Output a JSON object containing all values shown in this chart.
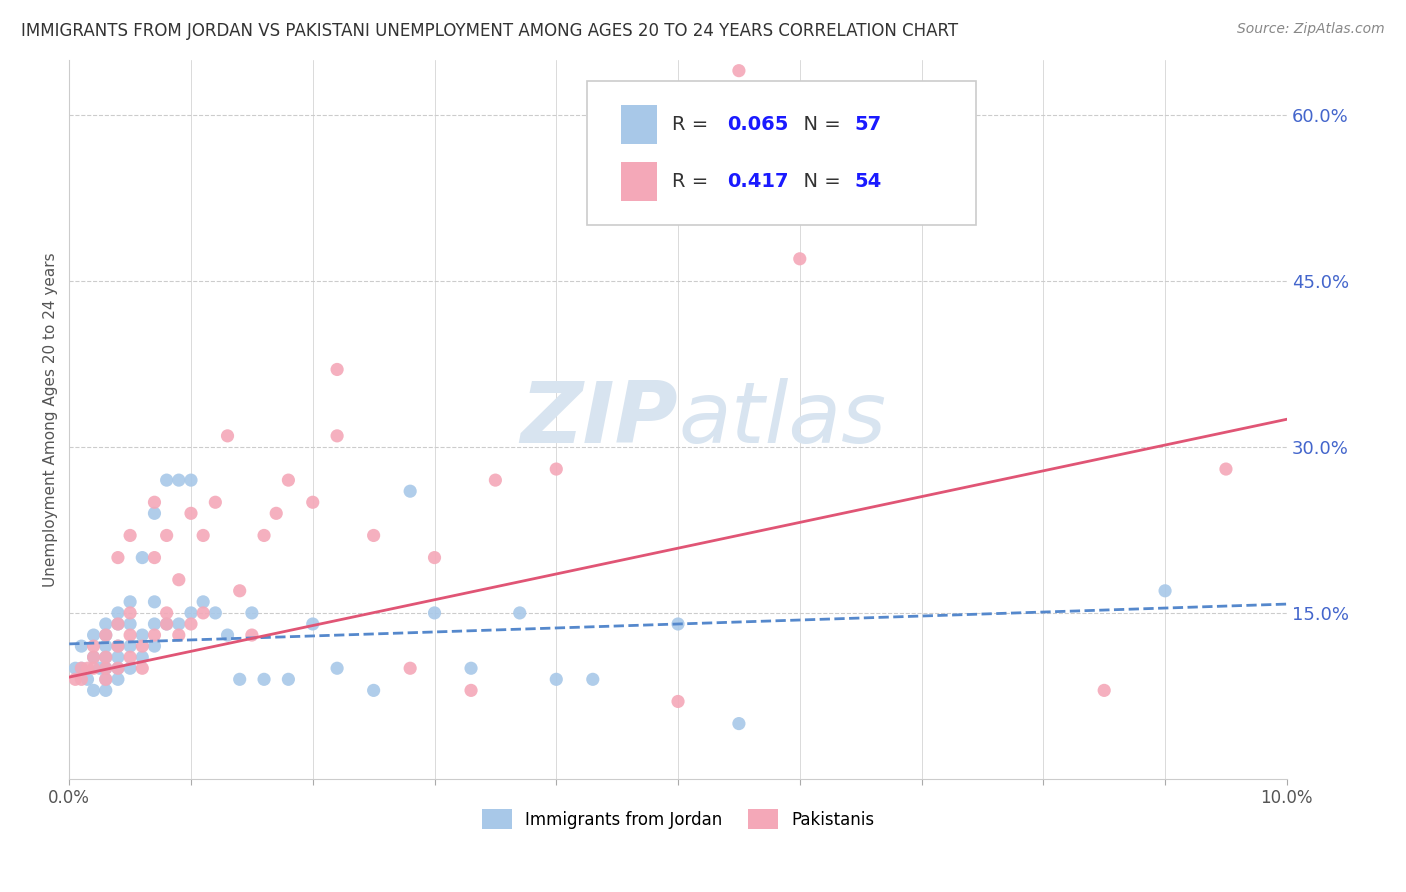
{
  "title": "IMMIGRANTS FROM JORDAN VS PAKISTANI UNEMPLOYMENT AMONG AGES 20 TO 24 YEARS CORRELATION CHART",
  "source": "Source: ZipAtlas.com",
  "ylabel": "Unemployment Among Ages 20 to 24 years",
  "xlim": [
    0.0,
    0.1
  ],
  "ylim": [
    0.0,
    0.65
  ],
  "xticks": [
    0.0,
    0.01,
    0.02,
    0.03,
    0.04,
    0.05,
    0.06,
    0.07,
    0.08,
    0.09,
    0.1
  ],
  "xticklabels": [
    "0.0%",
    "",
    "",
    "",
    "",
    "",
    "",
    "",
    "",
    "",
    "10.0%"
  ],
  "yticks_right": [
    0.15,
    0.3,
    0.45,
    0.6
  ],
  "ytick_right_labels": [
    "15.0%",
    "30.0%",
    "45.0%",
    "60.0%"
  ],
  "background_color": "#ffffff",
  "grid_color": "#cccccc",
  "jordan_color": "#a8c8e8",
  "pakistan_color": "#f4a8b8",
  "jordan_R": 0.065,
  "jordan_N": 57,
  "pakistan_R": 0.417,
  "pakistan_N": 54,
  "jordan_line_color": "#5588cc",
  "pakistan_line_color": "#e05575",
  "legend_text_color": "#1a1aff",
  "right_tick_color": "#4466cc",
  "watermark_color": "#d8e4f0",
  "jordan_scatter_x": [
    0.0005,
    0.001,
    0.001,
    0.0015,
    0.002,
    0.002,
    0.002,
    0.0025,
    0.003,
    0.003,
    0.003,
    0.003,
    0.003,
    0.003,
    0.003,
    0.004,
    0.004,
    0.004,
    0.004,
    0.004,
    0.004,
    0.005,
    0.005,
    0.005,
    0.005,
    0.006,
    0.006,
    0.006,
    0.007,
    0.007,
    0.007,
    0.007,
    0.008,
    0.008,
    0.009,
    0.009,
    0.01,
    0.01,
    0.011,
    0.012,
    0.013,
    0.014,
    0.015,
    0.016,
    0.018,
    0.02,
    0.022,
    0.025,
    0.028,
    0.03,
    0.033,
    0.037,
    0.04,
    0.043,
    0.05,
    0.055,
    0.09
  ],
  "jordan_scatter_y": [
    0.1,
    0.1,
    0.12,
    0.09,
    0.08,
    0.11,
    0.13,
    0.1,
    0.08,
    0.09,
    0.1,
    0.11,
    0.12,
    0.13,
    0.14,
    0.09,
    0.1,
    0.11,
    0.12,
    0.14,
    0.15,
    0.1,
    0.12,
    0.14,
    0.16,
    0.11,
    0.13,
    0.2,
    0.12,
    0.14,
    0.16,
    0.24,
    0.14,
    0.27,
    0.14,
    0.27,
    0.15,
    0.27,
    0.16,
    0.15,
    0.13,
    0.09,
    0.15,
    0.09,
    0.09,
    0.14,
    0.1,
    0.08,
    0.26,
    0.15,
    0.1,
    0.15,
    0.09,
    0.09,
    0.14,
    0.05,
    0.17
  ],
  "pakistan_scatter_x": [
    0.0005,
    0.001,
    0.001,
    0.0015,
    0.002,
    0.002,
    0.002,
    0.003,
    0.003,
    0.003,
    0.003,
    0.004,
    0.004,
    0.004,
    0.004,
    0.005,
    0.005,
    0.005,
    0.005,
    0.006,
    0.006,
    0.007,
    0.007,
    0.007,
    0.008,
    0.008,
    0.008,
    0.009,
    0.009,
    0.01,
    0.01,
    0.011,
    0.011,
    0.012,
    0.013,
    0.014,
    0.015,
    0.016,
    0.017,
    0.018,
    0.02,
    0.022,
    0.022,
    0.025,
    0.028,
    0.03,
    0.033,
    0.035,
    0.04,
    0.05,
    0.055,
    0.06,
    0.085,
    0.095
  ],
  "pakistan_scatter_y": [
    0.09,
    0.09,
    0.1,
    0.1,
    0.1,
    0.11,
    0.12,
    0.09,
    0.1,
    0.11,
    0.13,
    0.1,
    0.12,
    0.14,
    0.2,
    0.11,
    0.13,
    0.15,
    0.22,
    0.1,
    0.12,
    0.13,
    0.2,
    0.25,
    0.14,
    0.22,
    0.15,
    0.13,
    0.18,
    0.14,
    0.24,
    0.15,
    0.22,
    0.25,
    0.31,
    0.17,
    0.13,
    0.22,
    0.24,
    0.27,
    0.25,
    0.31,
    0.37,
    0.22,
    0.1,
    0.2,
    0.08,
    0.27,
    0.28,
    0.07,
    0.64,
    0.47,
    0.08,
    0.28
  ],
  "jordan_trendline_x0": 0.0,
  "jordan_trendline_x1": 0.1,
  "jordan_trendline_y0": 0.122,
  "jordan_trendline_y1": 0.158,
  "pakistan_trendline_x0": 0.0,
  "pakistan_trendline_x1": 0.1,
  "pakistan_trendline_y0": 0.092,
  "pakistan_trendline_y1": 0.325
}
